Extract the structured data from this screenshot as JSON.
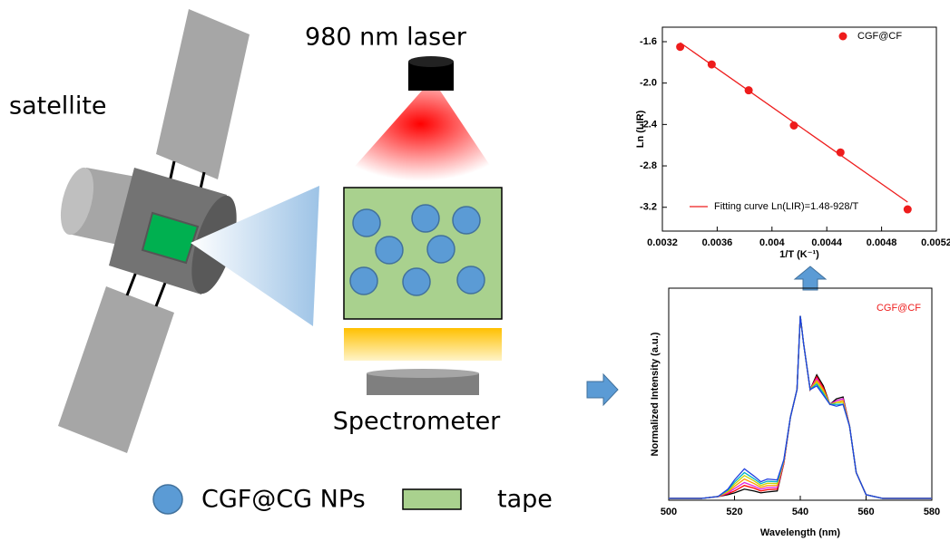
{
  "labels": {
    "laser": "980 nm laser",
    "satellite": "satellite",
    "spectrometer": "Spectrometer",
    "legend_np": "CGF@CG NPs",
    "legend_tape": "tape"
  },
  "chart_data": [
    {
      "type": "scatter",
      "xlabel": "1/T (K⁻¹)",
      "ylabel": "Ln (LIR)",
      "xlim": [
        0.0032,
        0.0052
      ],
      "xticks": [
        0.0032,
        0.0036,
        0.004,
        0.0044,
        0.0048,
        0.0052
      ],
      "ylim": [
        -3.43,
        -1.46
      ],
      "yticks": [
        {
          "value": -1.6,
          "label": "-1.6"
        },
        {
          "value": -2.0,
          "label": "-2.0"
        },
        {
          "value": -2.4,
          "label": "-2.4"
        },
        {
          "value": -2.8,
          "label": "-2.8"
        },
        {
          "value": -3.2,
          "label": "-3.2"
        }
      ],
      "series": [
        {
          "name": "CGF@CF",
          "type": "scatter",
          "color": "#ee1c1c",
          "x": [
            0.00333,
            0.00356,
            0.00383,
            0.00416,
            0.0045,
            0.00499
          ],
          "values": [
            -1.65,
            -1.82,
            -2.07,
            -2.41,
            -2.67,
            -3.22
          ]
        },
        {
          "name": "Fitting curve Ln(LIR)=1.48-928/T",
          "type": "line",
          "color": "#ee1c1c",
          "x": [
            0.00333,
            0.00499
          ],
          "values": [
            -1.61,
            -3.15
          ]
        }
      ]
    },
    {
      "type": "line",
      "xlabel": "Wavelength (nm)",
      "ylabel": "Normalized Intensity (a.u.)",
      "annotation": "CGF@CF",
      "annotation_color": "#ee1c1c",
      "xlim": [
        500,
        580
      ],
      "xticks": [
        500,
        520,
        540,
        560,
        580
      ],
      "ylim": [
        0,
        1.15
      ],
      "x": [
        500,
        510,
        515,
        518,
        520,
        523,
        526,
        528,
        530,
        533,
        535,
        537,
        539,
        540,
        541,
        543,
        545,
        547,
        549,
        551,
        553,
        555,
        557,
        560,
        565,
        580
      ],
      "series": [
        {
          "color": "#000000",
          "values": [
            0.01,
            0.01,
            0.02,
            0.03,
            0.04,
            0.06,
            0.05,
            0.04,
            0.045,
            0.05,
            0.2,
            0.45,
            0.6,
            1.0,
            0.85,
            0.6,
            0.68,
            0.62,
            0.52,
            0.55,
            0.56,
            0.4,
            0.15,
            0.03,
            0.01,
            0.01
          ]
        },
        {
          "color": "#ff0000",
          "values": [
            0.01,
            0.01,
            0.02,
            0.035,
            0.05,
            0.08,
            0.065,
            0.05,
            0.057,
            0.06,
            0.2,
            0.45,
            0.6,
            1.0,
            0.85,
            0.6,
            0.67,
            0.61,
            0.52,
            0.54,
            0.55,
            0.4,
            0.15,
            0.03,
            0.01,
            0.01
          ]
        },
        {
          "color": "#e020e0",
          "values": [
            0.01,
            0.01,
            0.02,
            0.04,
            0.063,
            0.096,
            0.076,
            0.06,
            0.068,
            0.07,
            0.205,
            0.45,
            0.6,
            1.0,
            0.85,
            0.6,
            0.66,
            0.6,
            0.52,
            0.54,
            0.55,
            0.4,
            0.15,
            0.03,
            0.01,
            0.01
          ]
        },
        {
          "color": "#ff9900",
          "values": [
            0.01,
            0.01,
            0.02,
            0.045,
            0.075,
            0.115,
            0.09,
            0.07,
            0.08,
            0.08,
            0.21,
            0.45,
            0.6,
            1.0,
            0.85,
            0.6,
            0.65,
            0.6,
            0.52,
            0.53,
            0.54,
            0.4,
            0.15,
            0.03,
            0.01,
            0.01
          ]
        },
        {
          "color": "#c8d400",
          "values": [
            0.01,
            0.01,
            0.02,
            0.05,
            0.087,
            0.134,
            0.104,
            0.08,
            0.092,
            0.09,
            0.213,
            0.45,
            0.6,
            1.0,
            0.85,
            0.6,
            0.64,
            0.59,
            0.52,
            0.53,
            0.53,
            0.4,
            0.15,
            0.03,
            0.01,
            0.01
          ]
        },
        {
          "color": "#00b0c8",
          "values": [
            0.01,
            0.01,
            0.02,
            0.055,
            0.098,
            0.15,
            0.116,
            0.09,
            0.103,
            0.1,
            0.217,
            0.45,
            0.6,
            1.0,
            0.85,
            0.6,
            0.63,
            0.58,
            0.52,
            0.52,
            0.52,
            0.4,
            0.15,
            0.03,
            0.01,
            0.01
          ]
        },
        {
          "color": "#2040e0",
          "values": [
            0.01,
            0.01,
            0.02,
            0.06,
            0.11,
            0.17,
            0.13,
            0.1,
            0.115,
            0.11,
            0.22,
            0.45,
            0.6,
            1.0,
            0.85,
            0.6,
            0.62,
            0.57,
            0.52,
            0.51,
            0.52,
            0.4,
            0.15,
            0.03,
            0.01,
            0.01
          ]
        }
      ]
    }
  ]
}
